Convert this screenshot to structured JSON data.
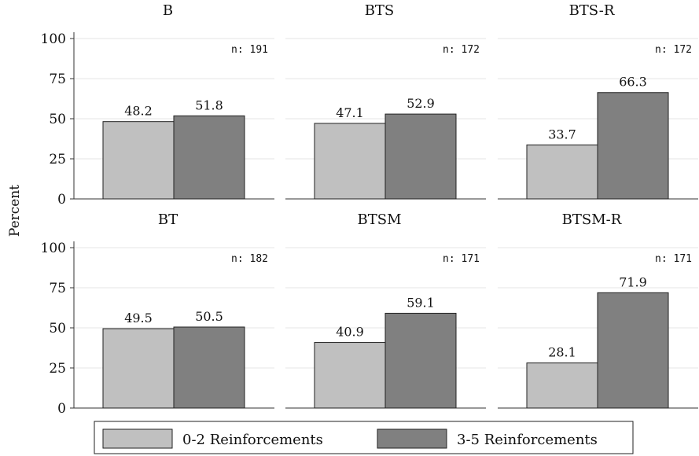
{
  "chart_data": {
    "type": "bar",
    "ylabel": "Percent",
    "ylim": [
      0,
      100
    ],
    "yticks": [
      0,
      25,
      50,
      75,
      100
    ],
    "grid": true,
    "legend_position": "bottom",
    "series_names": [
      "0-2 Reinforcements",
      "3-5 Reinforcements"
    ],
    "colors": [
      "#c0c0c0",
      "#808080"
    ],
    "panels": [
      {
        "title": "B",
        "n_label": "n: 191",
        "values": [
          48.2,
          51.8
        ],
        "labels": [
          "48.2",
          "51.8"
        ]
      },
      {
        "title": "BTS",
        "n_label": "n: 172",
        "values": [
          47.1,
          52.9
        ],
        "labels": [
          "47.1",
          "52.9"
        ]
      },
      {
        "title": "BTS-R",
        "n_label": "n: 172",
        "values": [
          33.7,
          66.3
        ],
        "labels": [
          "33.7",
          "66.3"
        ]
      },
      {
        "title": "BT",
        "n_label": "n: 182",
        "values": [
          49.5,
          50.5
        ],
        "labels": [
          "49.5",
          "50.5"
        ]
      },
      {
        "title": "BTSM",
        "n_label": "n: 171",
        "values": [
          40.9,
          59.1
        ],
        "labels": [
          "40.9",
          "59.1"
        ]
      },
      {
        "title": "BTSM-R",
        "n_label": "n: 171",
        "values": [
          28.1,
          71.9
        ],
        "labels": [
          "28.1",
          "71.9"
        ]
      }
    ]
  }
}
